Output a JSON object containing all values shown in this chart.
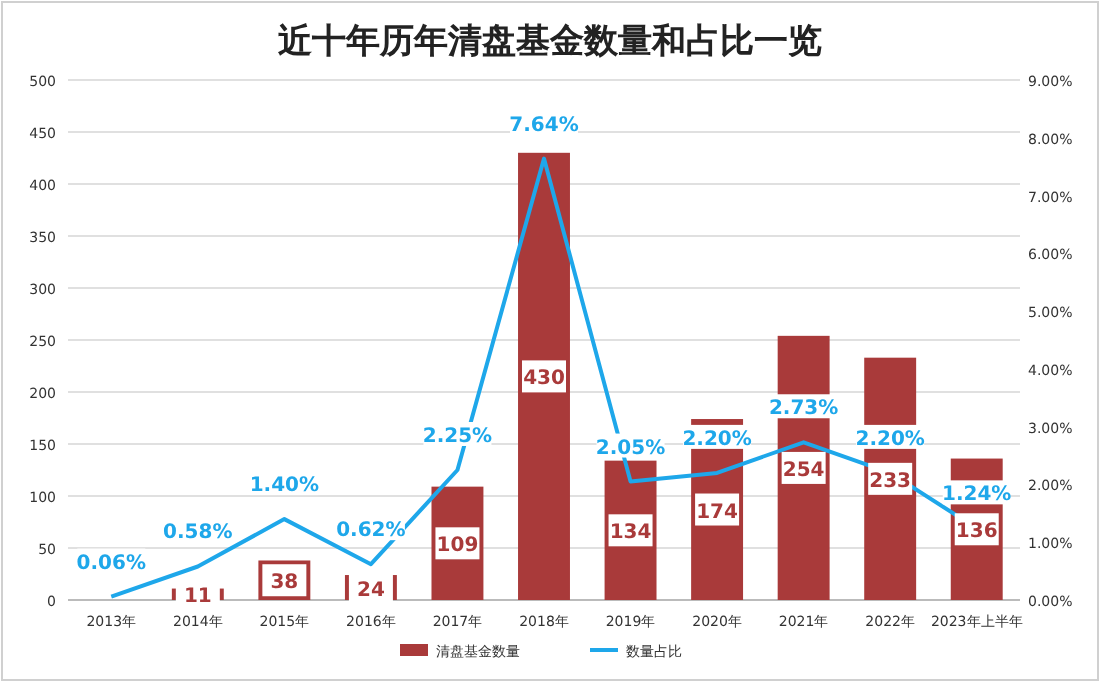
{
  "chart_data": {
    "type": "bar",
    "title": "近十年历年清盘基金数量和占比一览",
    "categories": [
      "2013年",
      "2014年",
      "2015年",
      "2016年",
      "2017年",
      "2018年",
      "2019年",
      "2020年",
      "2021年",
      "2022年",
      "2023年上半年"
    ],
    "series": [
      {
        "name": "清盘基金数量",
        "color": "#a93a3a",
        "values": [
          null,
          11,
          38,
          24,
          109,
          430,
          134,
          174,
          254,
          233,
          136
        ]
      },
      {
        "name": "数量占比",
        "type": "line",
        "axis": "y2",
        "color": "#1ea7ea",
        "values": [
          0.06,
          0.58,
          1.4,
          0.62,
          2.25,
          7.64,
          2.05,
          2.2,
          2.73,
          2.2,
          1.24
        ],
        "value_labels": [
          "0.06%",
          "0.58%",
          "1.40%",
          "0.62%",
          "2.25%",
          "7.64%",
          "2.05%",
          "2.20%",
          "2.73%",
          "2.20%",
          "1.24%"
        ]
      }
    ],
    "data_labels": true,
    "ylim": [
      0,
      500
    ],
    "yticks": [
      0,
      50,
      100,
      150,
      200,
      250,
      300,
      350,
      400,
      450,
      500
    ],
    "y2lim": [
      0,
      9
    ],
    "y2ticks": [
      {
        "value": 0,
        "label": "0.00%"
      },
      {
        "value": 1,
        "label": "1.00%"
      },
      {
        "value": 2,
        "label": "2.00%"
      },
      {
        "value": 3,
        "label": "3.00%"
      },
      {
        "value": 4,
        "label": "4.00%"
      },
      {
        "value": 5,
        "label": "5.00%"
      },
      {
        "value": 6,
        "label": "6.00%"
      },
      {
        "value": 7,
        "label": "7.00%"
      },
      {
        "value": 8,
        "label": "8.00%"
      },
      {
        "value": 9,
        "label": "9.00%"
      }
    ],
    "grid": "y",
    "legend": "bottom"
  }
}
